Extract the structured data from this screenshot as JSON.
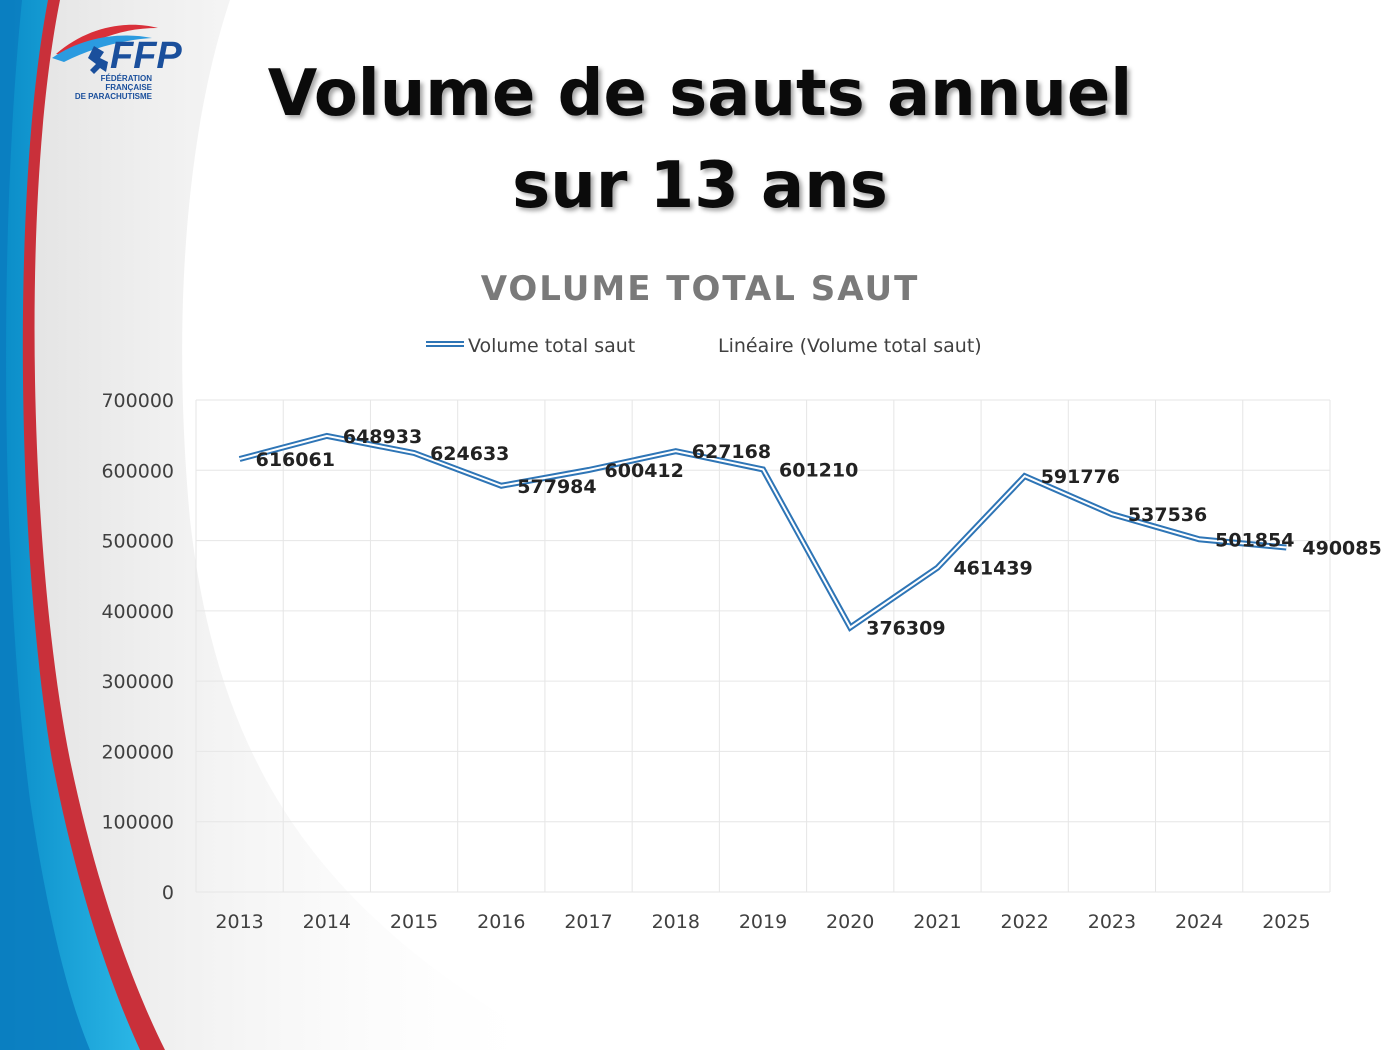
{
  "slide": {
    "title_line1": "Volume de sauts annuel",
    "title_line2": "sur 13 ans"
  },
  "logo": {
    "acronym": "FFP",
    "federation_line1": "FÉDÉRATION FRANÇAISE",
    "federation_line2": "DE PARACHUTISME"
  },
  "colors": {
    "line": "#2e75b6",
    "stripe_blue": "#1aa0d8",
    "stripe_red": "#c9303a",
    "grid": "#e6e6e6"
  },
  "chart_data": {
    "type": "line",
    "title": "VOLUME TOTAL SAUT",
    "categories": [
      "2013",
      "2014",
      "2015",
      "2016",
      "2017",
      "2018",
      "2019",
      "2020",
      "2021",
      "2022",
      "2023",
      "2024",
      "2025"
    ],
    "series": [
      {
        "name": "Volume total saut",
        "values": [
          616061,
          648933,
          624633,
          577984,
          600412,
          627168,
          601210,
          376309,
          461439,
          591776,
          537536,
          501854,
          490085
        ]
      }
    ],
    "legend": [
      "Volume total saut",
      "Linéaire (Volume total saut)"
    ],
    "legend_position": "top",
    "yticks": [
      "0",
      "100000",
      "200000",
      "300000",
      "400000",
      "500000",
      "600000",
      "700000"
    ],
    "ylim": [
      0,
      700000
    ],
    "grid": true,
    "xlabel": "",
    "ylabel": ""
  }
}
